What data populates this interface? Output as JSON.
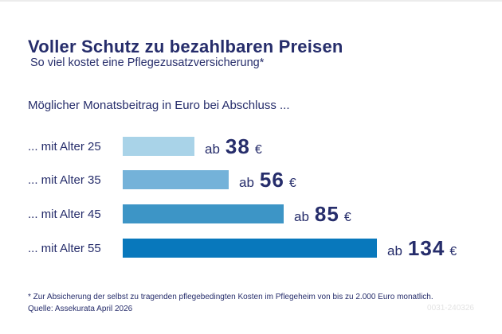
{
  "infographic": {
    "title": "Voller Schutz zu bezahlbaren Preisen",
    "subtitle": "So viel kostet eine Pflegezusatzversicherung*",
    "section_label": "Möglicher Monatsbeitrag in Euro bei Abschluss ...",
    "footnote": "* Zur Absicherung der selbst zu tragenden pflegebedingten Kosten im Pflegeheim von bis zu 2.000 Euro monatlich.",
    "source": "Quelle: Assekurata April 2026",
    "document_id": "0031-240326"
  },
  "colors": {
    "background": "#FFFFFF",
    "text_navy": "#262D6B",
    "document_id_gray": "#E3E3E3",
    "bar_age_25": "#A9D3E8",
    "bar_age_35": "#74B2D9",
    "bar_age_45": "#3D95C6",
    "bar_age_55": "#0878BC"
  },
  "chart_data": {
    "type": "bar",
    "orientation": "horizontal",
    "title": "Voller Schutz zu bezahlbaren Preisen",
    "subtitle": "So viel kostet eine Pflegezusatzversicherung*",
    "axis_label": "Möglicher Monatsbeitrag in Euro bei Abschluss ...",
    "categories": [
      "... mit Alter 25",
      "... mit Alter 35",
      "... mit Alter 45",
      "... mit Alter 55"
    ],
    "values": [
      38,
      56,
      85,
      134
    ],
    "value_prefix": "ab",
    "value_suffix": "€",
    "xlim": [
      0,
      134
    ],
    "grid": false,
    "legend": false,
    "bar_colors": [
      "#A9D3E8",
      "#74B2D9",
      "#3D95C6",
      "#0878BC"
    ]
  }
}
